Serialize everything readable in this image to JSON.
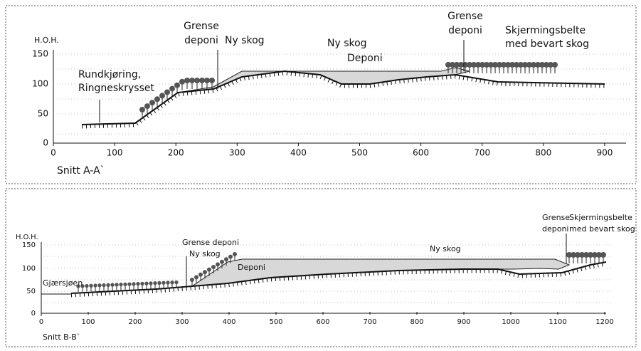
{
  "panels": [
    {
      "y_axis_label": "H.O.H.",
      "y_ticks": [
        "150",
        "100",
        "50",
        "0"
      ],
      "x_ticks": [
        "0",
        "100",
        "200",
        "300",
        "400",
        "500",
        "600",
        "700",
        "800",
        "900"
      ],
      "section_label": "Snitt A-A`",
      "labels": [
        "Rundkjøring,",
        "Ringneskrysset",
        "Grense",
        "deponi",
        "Ny skog",
        "Ny skog",
        "Deponi",
        "Grense",
        "deponi",
        "Skjermingsbelte",
        "med bevart skog"
      ]
    },
    {
      "y_axis_label": "H.O.H.",
      "y_ticks": [
        "150",
        "100",
        "50",
        "0"
      ],
      "x_ticks": [
        "0",
        "100",
        "200",
        "300",
        "400",
        "500",
        "600",
        "700",
        "800",
        "900",
        "1000",
        "1100",
        "1200"
      ],
      "section_label": "Snitt B-B`",
      "labels": [
        "Gjærsjøen",
        "Grense deponi",
        "Ny skog",
        "Deponi",
        "Ny skog",
        "Grense",
        "Skjermingsbelte",
        "deponi",
        "med bevart skog"
      ]
    }
  ]
}
